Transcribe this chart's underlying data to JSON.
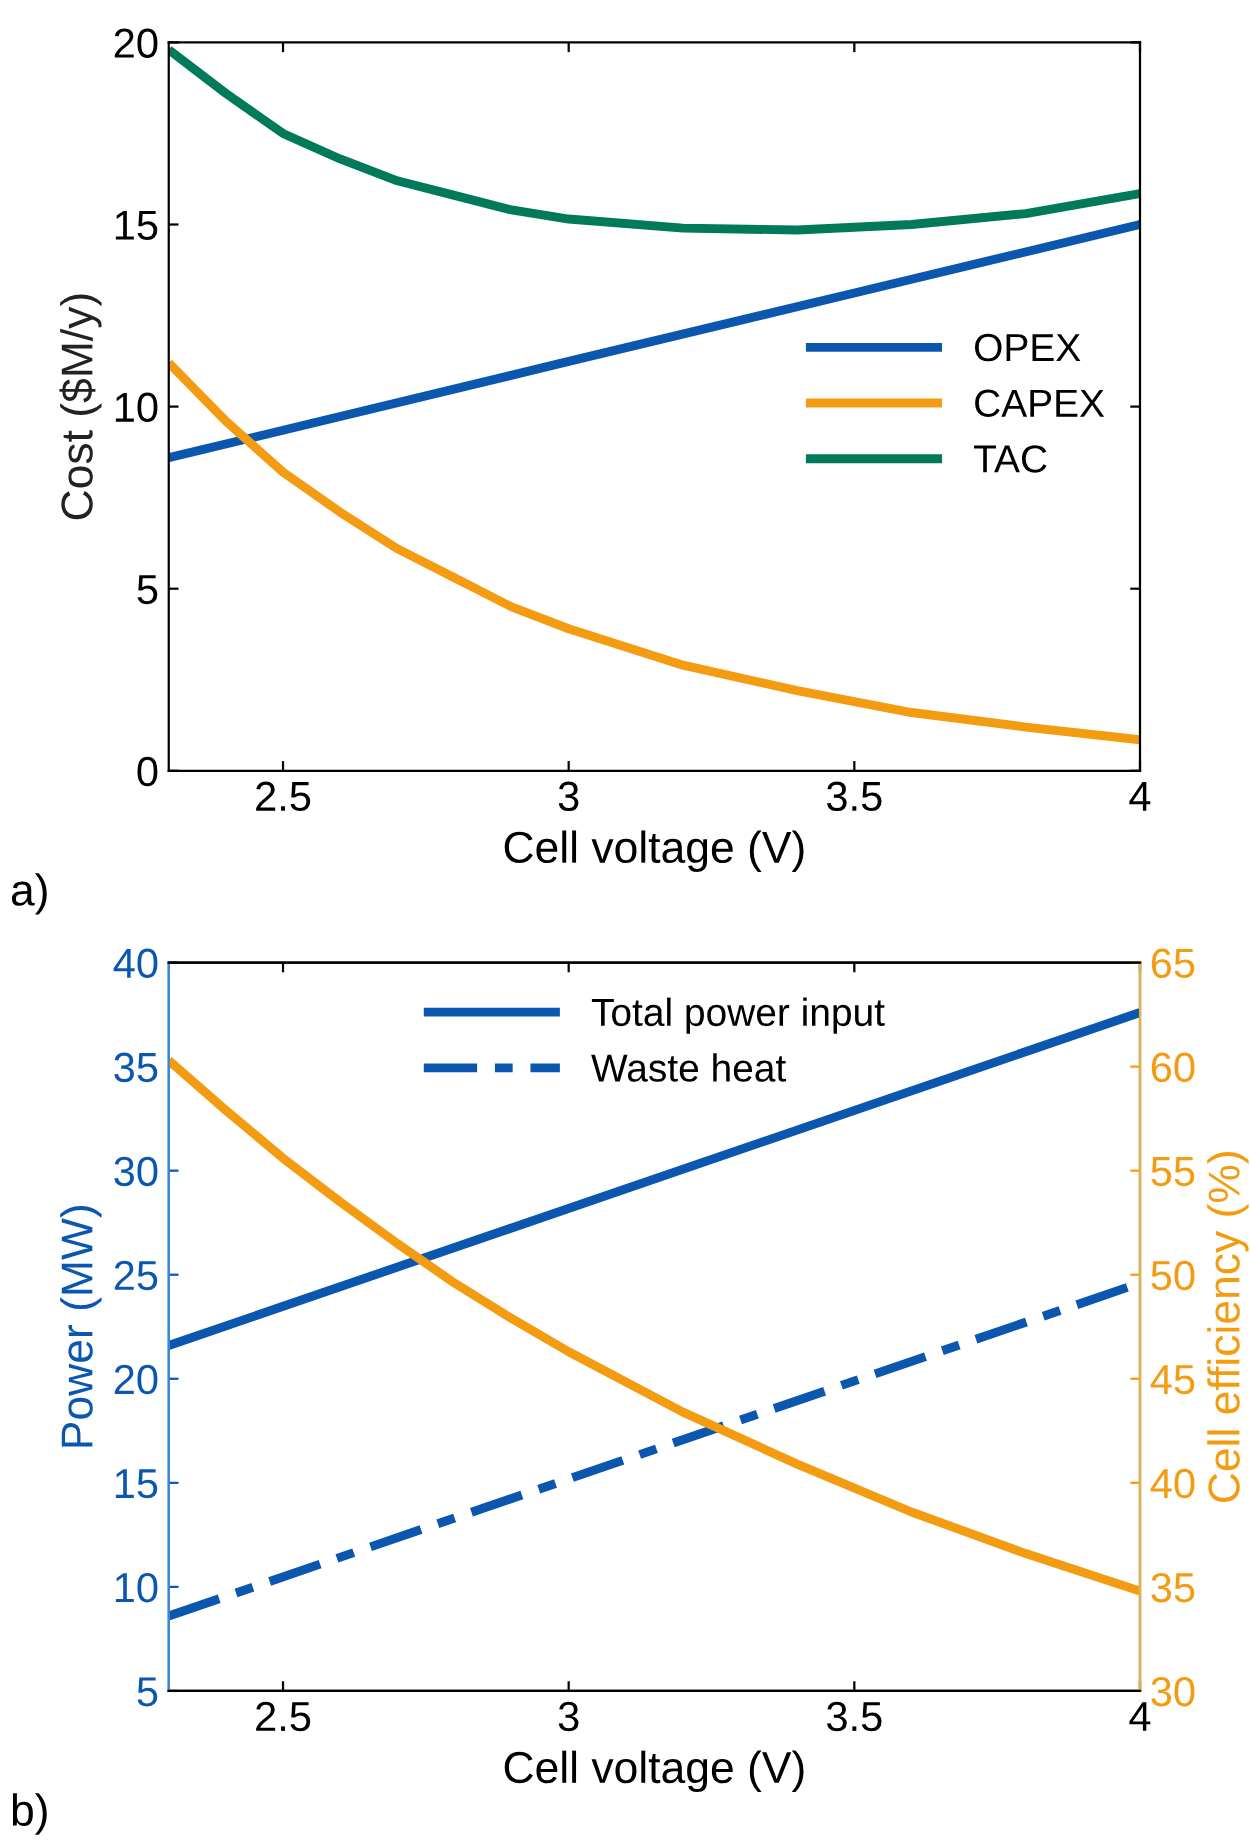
{
  "chart_data": [
    {
      "type": "line",
      "xlabel": "Cell voltage (V)",
      "ylabel": "Cost ($M/y)",
      "xlim": [
        2.3,
        4
      ],
      "xticks": [
        2.5,
        3,
        3.5,
        4
      ],
      "ylim": [
        0,
        20
      ],
      "yticks": [
        0,
        5,
        10,
        15,
        20
      ],
      "legend": "right",
      "grid": false,
      "line_style": "solid",
      "annotations": [
        "a)"
      ],
      "series": [
        {
          "name": "OPEX",
          "color": "#0b57b0",
          "x": [
            2.3,
            2.5,
            3,
            3.5,
            4
          ],
          "values": [
            8.6,
            9.35,
            11.24,
            13.12,
            15.0
          ]
        },
        {
          "name": "CAPEX",
          "color": "#f39c12",
          "x": [
            2.3,
            2.4,
            2.5,
            2.6,
            2.7,
            2.8,
            2.9,
            3.0,
            3.2,
            3.4,
            3.6,
            3.8,
            4.0
          ],
          "values": [
            11.2,
            9.6,
            8.2,
            7.1,
            6.1,
            5.3,
            4.5,
            3.9,
            2.9,
            2.2,
            1.6,
            1.2,
            0.85
          ]
        },
        {
          "name": "TAC",
          "color": "#007a5a",
          "x": [
            2.3,
            2.4,
            2.5,
            2.6,
            2.7,
            2.8,
            2.9,
            3.0,
            3.2,
            3.4,
            3.6,
            3.8,
            4.0
          ],
          "values": [
            19.8,
            18.6,
            17.5,
            16.8,
            16.2,
            15.8,
            15.4,
            15.15,
            14.9,
            14.85,
            15.0,
            15.3,
            15.85
          ]
        }
      ]
    },
    {
      "type": "line",
      "xlabel": "Cell voltage (V)",
      "ylabel": "Power (MW)",
      "y2label": "Cell efficiency (%)",
      "xlim": [
        2.3,
        4
      ],
      "xticks": [
        2.5,
        3,
        3.5,
        4
      ],
      "ylim": [
        5,
        40
      ],
      "yticks": [
        5,
        10,
        15,
        20,
        25,
        30,
        35,
        40
      ],
      "y2lim": [
        30,
        65
      ],
      "y2ticks": [
        30,
        35,
        40,
        45,
        50,
        55,
        60,
        65
      ],
      "legend": "top",
      "grid": false,
      "annotations": [
        "b)"
      ],
      "series": [
        {
          "name": "Total power input",
          "color": "#0b57b0",
          "x": [
            2.3,
            4
          ],
          "values": [
            21.6,
            37.6
          ],
          "line_style": "solid"
        },
        {
          "name": "Waste heat",
          "color": "#0b57b0",
          "x": [
            2.3,
            4
          ],
          "values": [
            8.6,
            24.6
          ],
          "line_style": "dashdot"
        },
        {
          "color": "#f39c12",
          "axis": "y2",
          "x": [
            2.3,
            2.4,
            2.5,
            2.6,
            2.7,
            2.8,
            2.9,
            3.0,
            3.2,
            3.4,
            3.6,
            3.8,
            4.0
          ],
          "values": [
            60.3,
            57.9,
            55.6,
            53.5,
            51.5,
            49.6,
            47.9,
            46.3,
            43.4,
            40.9,
            38.6,
            36.6,
            34.8
          ],
          "line_style": "solid"
        }
      ]
    }
  ]
}
